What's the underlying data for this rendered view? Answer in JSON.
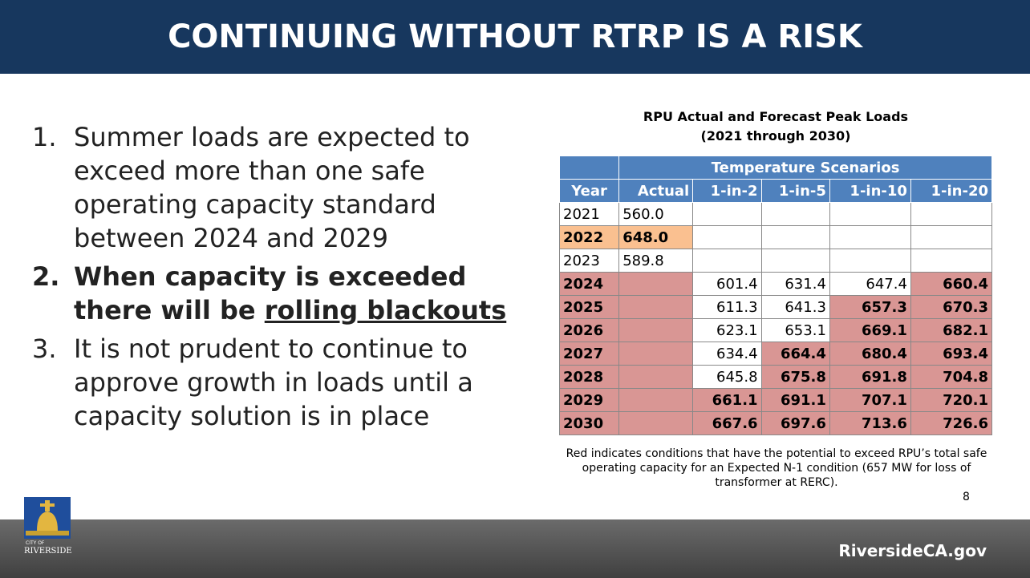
{
  "header": {
    "title": "CONTINUING WITHOUT RTRP IS A RISK"
  },
  "list": [
    {
      "number": "1.",
      "text": "Summer loads are expected to exceed more than one safe operating capacity standard between 2024 and 2029"
    },
    {
      "number": "2.",
      "text": "When capacity is exceeded there will be ",
      "underlined": "rolling blackouts",
      "bold": true
    },
    {
      "number": "3.",
      "text": "It is not prudent to continue to approve growth in loads until a capacity solution is in place"
    }
  ],
  "table": {
    "title_lines": [
      "RPU Actual and Forecast Peak Loads",
      "(2021 through 2030)"
    ],
    "group_header": "Temperature Scenarios",
    "columns": [
      "Year",
      "Actual",
      "1-in-2",
      "1-in-5",
      "1-in-10",
      "1-in-20"
    ],
    "colors": {
      "header": "#4f81bd",
      "red": "#d99694",
      "orange": "#fac090"
    },
    "rows": [
      {
        "cells": [
          "2021",
          "560.0",
          null,
          null,
          null,
          null
        ]
      },
      {
        "cells": [
          "2022",
          "648.0",
          null,
          null,
          null,
          null
        ],
        "fill": "orange",
        "highlight_cols": [
          0,
          1
        ]
      },
      {
        "cells": [
          "2023",
          "589.8",
          null,
          null,
          null,
          null
        ]
      },
      {
        "cells": [
          "2024",
          null,
          "601.4",
          "631.4",
          "647.4",
          "660.4"
        ],
        "fill": "red",
        "highlight_cols": [
          0,
          1,
          5
        ]
      },
      {
        "cells": [
          "2025",
          null,
          "611.3",
          "641.3",
          "657.3",
          "670.3"
        ],
        "fill": "red",
        "highlight_cols": [
          0,
          1,
          4,
          5
        ]
      },
      {
        "cells": [
          "2026",
          null,
          "623.1",
          "653.1",
          "669.1",
          "682.1"
        ],
        "fill": "red",
        "highlight_cols": [
          0,
          1,
          4,
          5
        ]
      },
      {
        "cells": [
          "2027",
          null,
          "634.4",
          "664.4",
          "680.4",
          "693.4"
        ],
        "fill": "red",
        "highlight_cols": [
          0,
          1,
          3,
          4,
          5
        ]
      },
      {
        "cells": [
          "2028",
          null,
          "645.8",
          "675.8",
          "691.8",
          "704.8"
        ],
        "fill": "red",
        "highlight_cols": [
          0,
          1,
          3,
          4,
          5
        ]
      },
      {
        "cells": [
          "2029",
          null,
          "661.1",
          "691.1",
          "707.1",
          "720.1"
        ],
        "fill": "red",
        "highlight_cols": [
          0,
          1,
          2,
          3,
          4,
          5
        ]
      },
      {
        "cells": [
          "2030",
          null,
          "667.6",
          "697.6",
          "713.6",
          "726.6"
        ],
        "fill": "red",
        "highlight_cols": [
          0,
          1,
          2,
          3,
          4,
          5
        ]
      }
    ],
    "footnote": "Red indicates conditions that have the potential to exceed RPU’s total safe operating capacity for an Expected N-1 condition (657 MW for loss of transformer at RERC)."
  },
  "page_number": "8",
  "footer": {
    "logo_lines": [
      "CITY OF",
      "RIVERSIDE"
    ],
    "url": "RiversideCA.gov"
  }
}
